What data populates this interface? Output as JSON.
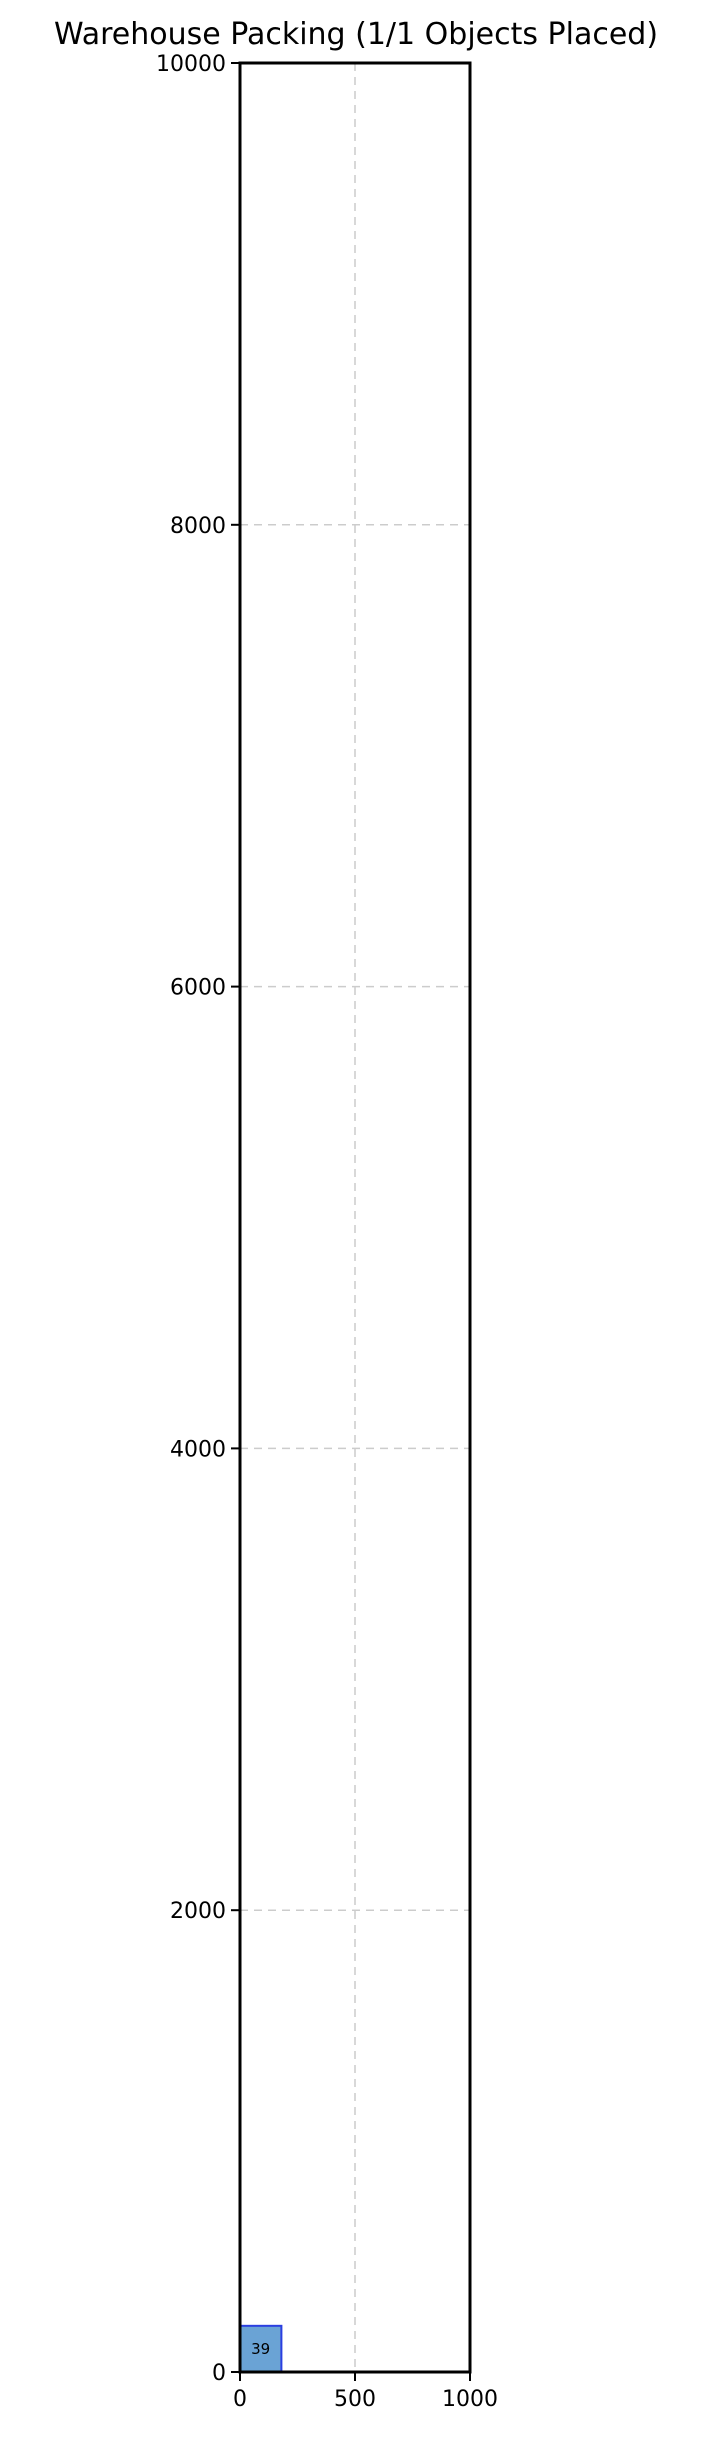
{
  "chart_data": {
    "type": "rectangles",
    "title": "Warehouse Packing (1/1 Objects Placed)",
    "xlabel": "",
    "ylabel": "",
    "xlim": [
      0,
      1000
    ],
    "ylim": [
      0,
      10000
    ],
    "x_ticks": [
      0,
      500,
      1000
    ],
    "y_ticks": [
      0,
      2000,
      4000,
      6000,
      8000,
      10000
    ],
    "grid": true,
    "objects": [
      {
        "id": "39",
        "x": 0,
        "y": 0,
        "width": 180,
        "height": 200,
        "fill": "#6aa3d5",
        "stroke": "#2b3fe0"
      }
    ]
  }
}
